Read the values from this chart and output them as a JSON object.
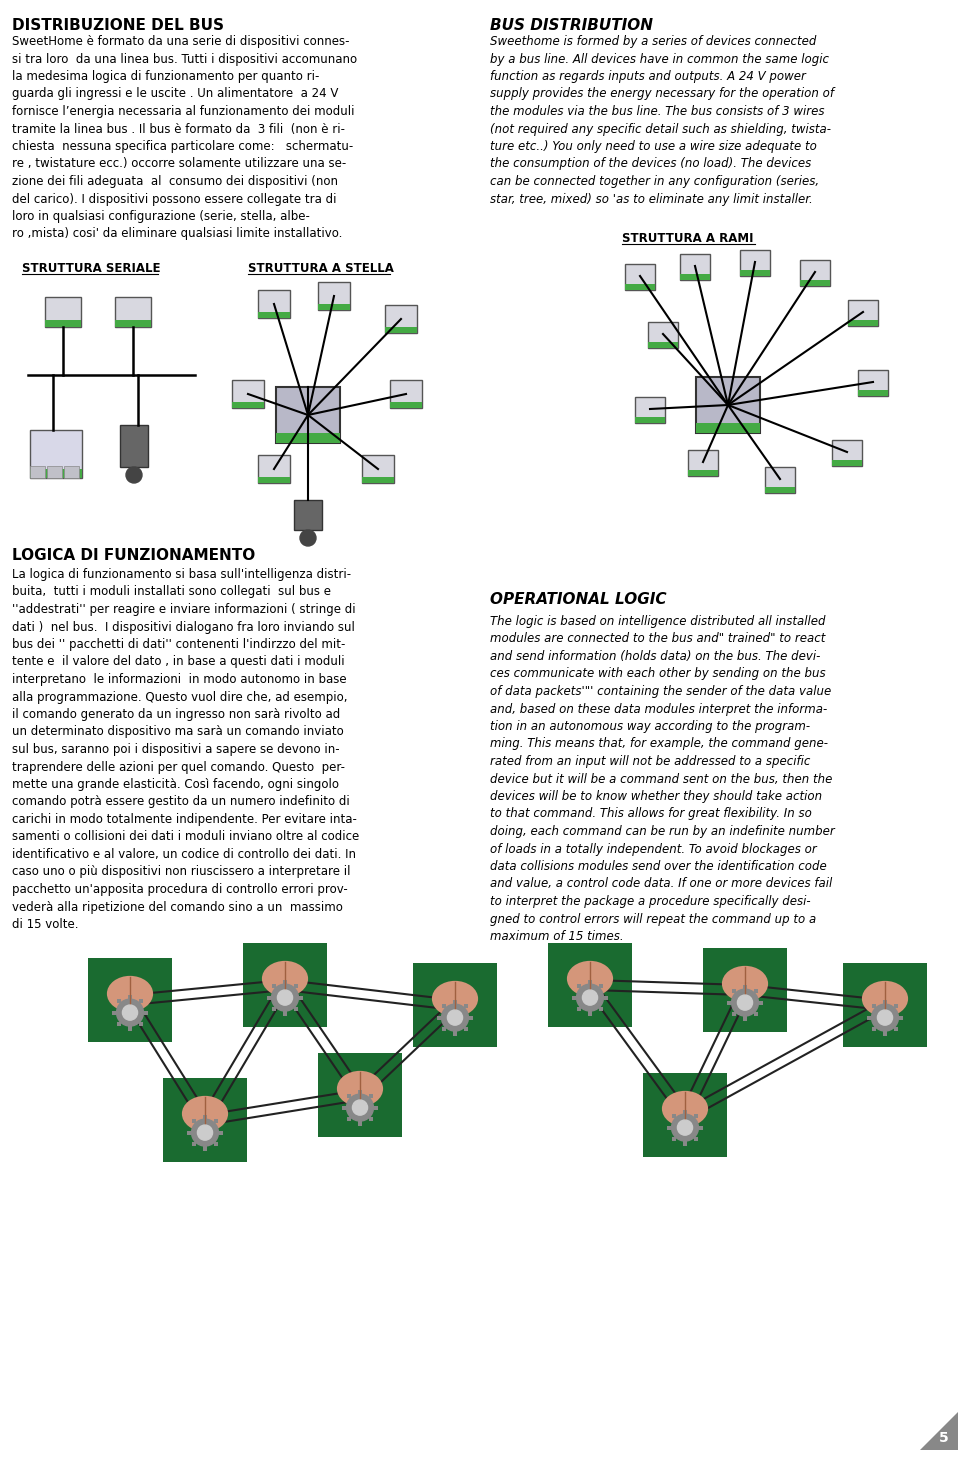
{
  "title_left": "DISTRIBUZIONE DEL BUS",
  "title_right": "BUS DISTRIBUTION",
  "label_seriale": "STRUTTURA SERIALE",
  "label_stella": "STRUTTURA A STELLA",
  "label_rami": "STRUTTURA A RAMI",
  "title_logica": "LOGICA DI FUNZIONAMENTO",
  "title_operational": "OPERATIONAL LOGIC",
  "page_number": "5",
  "bg_color": "#ffffff",
  "text_color": "#000000",
  "title_fontsize": 11,
  "body_fontsize": 8.5,
  "italic_fontsize": 8.5
}
